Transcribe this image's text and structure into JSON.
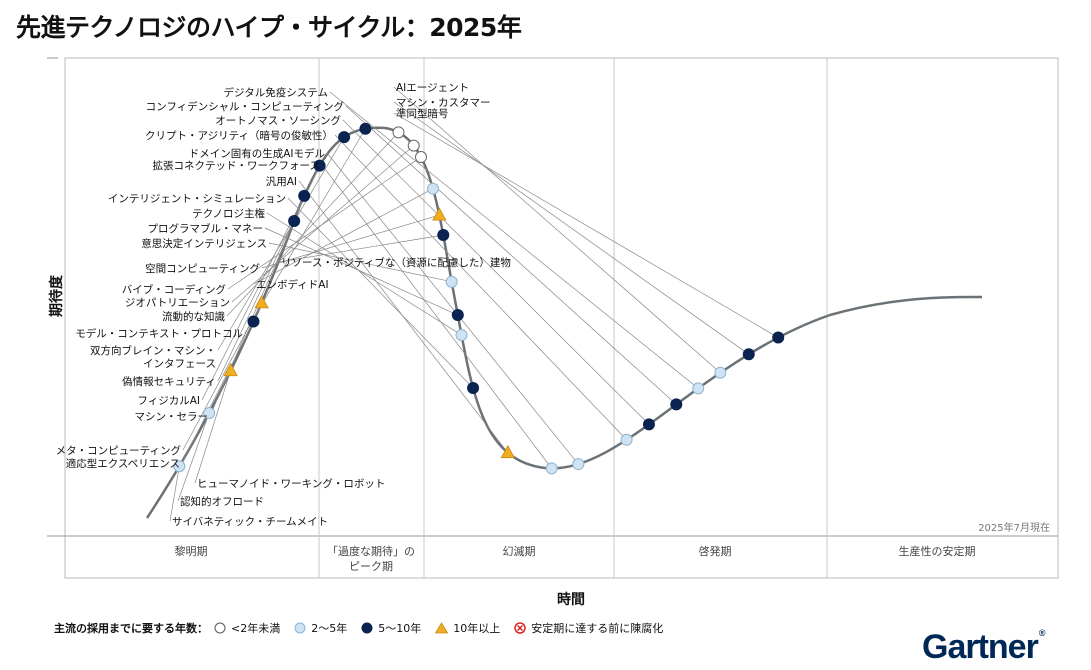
{
  "title": "先進テクノロジのハイプ・サイクル：2025年",
  "chart_data": {
    "type": "hype-cycle",
    "ylabel": "期待度",
    "xlabel": "時間",
    "as_of": "2025年7月現在",
    "phases": [
      "黎明期",
      "「過度な期待」の\nピーク期",
      "幻滅期",
      "啓発期",
      "生産性の安定期"
    ],
    "legend_title": "主流の採用までに要する年数：",
    "legend": [
      {
        "key": "lt2",
        "label": "<2年未満"
      },
      {
        "key": "2to5",
        "label": "2～5年"
      },
      {
        "key": "5to10",
        "label": "5～10年"
      },
      {
        "key": "gt10",
        "label": "10年以上"
      },
      {
        "key": "obsolete",
        "label": "安定期に達する前に陳腐化"
      }
    ],
    "colors": {
      "lt2": "#ffffff",
      "2to5": "#cfe3f3",
      "5to10": "#0b2350",
      "gt10": "#f0ad1f",
      "obsolete": "#d62828",
      "curve": "#6b7276"
    },
    "technologies": [
      {
        "name": "サイバネティック・チームメイト",
        "pos": 0.045,
        "cat": "2to5",
        "side": "right"
      },
      {
        "name": "認知的オフロード",
        "pos": 0.09,
        "cat": "2to5",
        "side": "right"
      },
      {
        "name": "ヒューマノイド・ワーキング・ロボット",
        "pos": 0.125,
        "cat": "gt10",
        "side": "right"
      },
      {
        "name": "適応型エクスペリエンス",
        "pos": 0.165,
        "cat": "5to10",
        "side": "left"
      },
      {
        "name": "メタ・コンピューティング",
        "pos": 0.18,
        "cat": "gt10",
        "side": "left"
      },
      {
        "name": "マシン・セラー",
        "pos": 0.245,
        "cat": "5to10",
        "side": "left"
      },
      {
        "name": "フィジカルAI",
        "pos": 0.265,
        "cat": "5to10",
        "side": "left"
      },
      {
        "name": "偽情報セキュリティ",
        "pos": 0.29,
        "cat": "5to10",
        "side": "left"
      },
      {
        "name": "双方向ブレイン・マシン・\nインタフェース",
        "pos": 0.318,
        "cat": "5to10",
        "side": "left"
      },
      {
        "name": "モデル・コンテキスト・プロトコル",
        "pos": 0.335,
        "cat": "5to10",
        "side": "left"
      },
      {
        "name": "流動的な知識",
        "pos": 0.36,
        "cat": "lt2",
        "side": "left"
      },
      {
        "name": "ジオパトリエーション",
        "pos": 0.375,
        "cat": "lt2",
        "side": "left"
      },
      {
        "name": "バイブ・コーディング",
        "pos": 0.385,
        "cat": "lt2",
        "side": "left"
      },
      {
        "name": "エンボディドAI",
        "pos": 0.41,
        "cat": "2to5",
        "side": "right"
      },
      {
        "name": "空間コンピューティング",
        "pos": 0.43,
        "cat": "gt10",
        "side": "left"
      },
      {
        "name": "リソース・ポジティブな（資源に配慮した）建物",
        "pos": 0.445,
        "cat": "5to10",
        "side": "right"
      },
      {
        "name": "意思決定インテリジェンス",
        "pos": 0.48,
        "cat": "2to5",
        "side": "left"
      },
      {
        "name": "プログラマブル・マネー",
        "pos": 0.505,
        "cat": "5to10",
        "side": "left"
      },
      {
        "name": "テクノロジ主権",
        "pos": 0.52,
        "cat": "2to5",
        "side": "left"
      },
      {
        "name": "インテリジェント・シミュレーション",
        "pos": 0.56,
        "cat": "5to10",
        "side": "left"
      },
      {
        "name": "汎用AI",
        "pos": 0.615,
        "cat": "gt10",
        "side": "left"
      },
      {
        "name": "拡張コネクテッド・ワークフォース",
        "pos": 0.65,
        "cat": "2to5",
        "side": "left"
      },
      {
        "name": "ドメイン固有の生成AIモデル",
        "pos": 0.67,
        "cat": "2to5",
        "side": "left"
      },
      {
        "name": "クリプト・アジリティ（暗号の俊敏性）",
        "pos": 0.71,
        "cat": "2to5",
        "side": "left"
      },
      {
        "name": "オートノマス・ソーシング",
        "pos": 0.73,
        "cat": "5to10",
        "side": "left"
      },
      {
        "name": "コンフィデンシャル・コンピューティング",
        "pos": 0.755,
        "cat": "5to10",
        "side": "left"
      },
      {
        "name": "デジタル免疫システム",
        "pos": 0.775,
        "cat": "2to5",
        "side": "left"
      },
      {
        "name": "AIエージェント",
        "pos": 0.795,
        "cat": "2to5",
        "side": "right"
      },
      {
        "name": "マシン・カスタマー",
        "pos": 0.82,
        "cat": "5to10",
        "side": "right"
      },
      {
        "name": "準同型暗号",
        "pos": 0.845,
        "cat": "5to10",
        "side": "right"
      }
    ]
  },
  "brand": "Gartner"
}
